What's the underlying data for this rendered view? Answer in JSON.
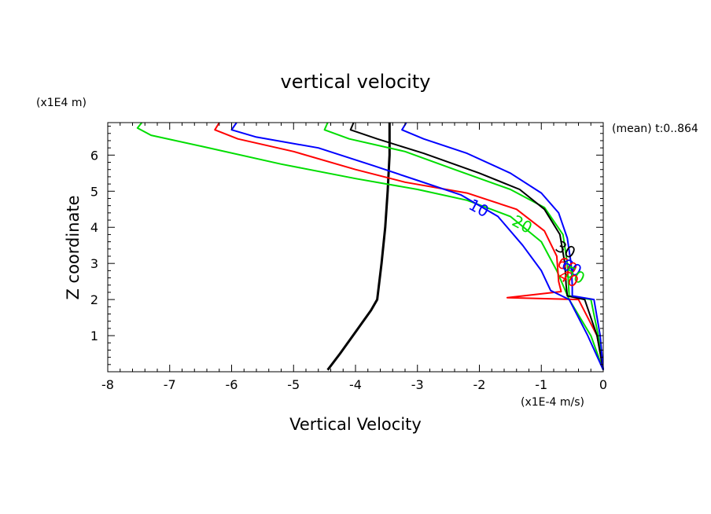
{
  "chart_data": {
    "type": "line",
    "title": "vertical velocity",
    "xlabel": "Vertical Velocity",
    "ylabel": "Z coordinate",
    "x_unit": "(x1E-4 m/s)",
    "y_unit": "(x1E4 m)",
    "annotation": "(mean) t:0..864",
    "xlim": [
      -8,
      0
    ],
    "ylim": [
      0,
      6.9
    ],
    "x_ticks": [
      "-8",
      "-7",
      "-6",
      "-5",
      "-4",
      "-3",
      "-2",
      "-1",
      "0"
    ],
    "y_ticks": [
      "1",
      "2",
      "3",
      "4",
      "5",
      "6"
    ],
    "grid": false,
    "series": [
      {
        "color": "#000000",
        "width": 3,
        "points": [
          [
            -4.45,
            0.05
          ],
          [
            -4.25,
            0.5
          ],
          [
            -4.0,
            1.1
          ],
          [
            -3.75,
            1.7
          ],
          [
            -3.65,
            2.0
          ],
          [
            -3.58,
            3.0
          ],
          [
            -3.52,
            4.0
          ],
          [
            -3.48,
            5.0
          ],
          [
            -3.45,
            6.0
          ],
          [
            -3.45,
            6.9
          ]
        ]
      },
      {
        "color": "#00dd00",
        "width": 2,
        "points": [
          [
            -7.45,
            6.9
          ],
          [
            -7.52,
            6.75
          ],
          [
            -7.3,
            6.55
          ],
          [
            -6.5,
            6.25
          ],
          [
            -5.2,
            5.75
          ],
          [
            -4.0,
            5.35
          ],
          [
            -3.0,
            5.05
          ],
          [
            -2.2,
            4.75
          ],
          [
            -1.5,
            4.3
          ],
          [
            -1.0,
            3.6
          ],
          [
            -0.75,
            2.8
          ],
          [
            -0.55,
            2.0
          ],
          [
            -0.2,
            1.0
          ],
          [
            0,
            0.05
          ]
        ]
      },
      {
        "color": "#ff0000",
        "width": 2,
        "points": [
          [
            -6.2,
            6.9
          ],
          [
            -6.27,
            6.7
          ],
          [
            -5.9,
            6.45
          ],
          [
            -5.0,
            6.1
          ],
          [
            -4.0,
            5.6
          ],
          [
            -3.2,
            5.25
          ],
          [
            -2.2,
            4.95
          ],
          [
            -1.4,
            4.5
          ],
          [
            -0.95,
            3.9
          ],
          [
            -0.75,
            3.2
          ],
          [
            -0.72,
            2.5
          ],
          [
            -0.68,
            2.22
          ],
          [
            -1.55,
            2.05
          ],
          [
            -0.4,
            2.0
          ],
          [
            -0.1,
            1.0
          ],
          [
            0,
            0.05
          ]
        ]
      },
      {
        "color": "#0000ff",
        "width": 2,
        "points": [
          [
            -5.92,
            6.9
          ],
          [
            -6.0,
            6.7
          ],
          [
            -5.6,
            6.5
          ],
          [
            -4.6,
            6.2
          ],
          [
            -3.7,
            5.7
          ],
          [
            -3.0,
            5.3
          ],
          [
            -2.3,
            4.9
          ],
          [
            -1.7,
            4.3
          ],
          [
            -1.3,
            3.5
          ],
          [
            -1.0,
            2.8
          ],
          [
            -0.85,
            2.25
          ],
          [
            -0.55,
            2.0
          ],
          [
            -0.25,
            1.0
          ],
          [
            0,
            0.05
          ]
        ]
      },
      {
        "color": "#00dd00",
        "width": 2,
        "points": [
          [
            -4.45,
            6.9
          ],
          [
            -4.5,
            6.7
          ],
          [
            -4.1,
            6.45
          ],
          [
            -3.2,
            6.1
          ],
          [
            -2.4,
            5.6
          ],
          [
            -1.5,
            5.05
          ],
          [
            -0.95,
            4.55
          ],
          [
            -0.65,
            3.8
          ],
          [
            -0.58,
            3.0
          ],
          [
            -0.56,
            2.4
          ],
          [
            -0.55,
            2.1
          ],
          [
            -0.2,
            2.0
          ],
          [
            -0.08,
            1.0
          ],
          [
            0,
            0.05
          ]
        ]
      },
      {
        "color": "#000000",
        "width": 2,
        "points": [
          [
            -4.03,
            6.9
          ],
          [
            -4.08,
            6.7
          ],
          [
            -3.65,
            6.45
          ],
          [
            -2.9,
            6.05
          ],
          [
            -2.0,
            5.5
          ],
          [
            -1.35,
            5.05
          ],
          [
            -0.95,
            4.5
          ],
          [
            -0.7,
            3.8
          ],
          [
            -0.62,
            3.0
          ],
          [
            -0.6,
            2.4
          ],
          [
            -0.58,
            2.1
          ],
          [
            -0.3,
            2.0
          ],
          [
            -0.1,
            1.0
          ],
          [
            0,
            0.05
          ]
        ]
      },
      {
        "color": "#0000ff",
        "width": 2,
        "points": [
          [
            -3.18,
            6.9
          ],
          [
            -3.25,
            6.7
          ],
          [
            -2.9,
            6.45
          ],
          [
            -2.2,
            6.05
          ],
          [
            -1.5,
            5.5
          ],
          [
            -1.0,
            4.95
          ],
          [
            -0.72,
            4.4
          ],
          [
            -0.58,
            3.7
          ],
          [
            -0.52,
            3.0
          ],
          [
            -0.5,
            2.4
          ],
          [
            -0.5,
            2.1
          ],
          [
            -0.15,
            2.0
          ],
          [
            -0.05,
            1.0
          ],
          [
            0,
            0.05
          ]
        ]
      }
    ],
    "contour_labels": [
      {
        "text": "10",
        "color": "#0000ff",
        "x": -2.05,
        "y": 4.4
      },
      {
        "text": "20",
        "color": "#00dd00",
        "x": -1.35,
        "y": 3.95
      },
      {
        "text": "30",
        "color": "#000000",
        "x": -0.65,
        "y": 3.25
      },
      {
        "text": "60",
        "color": "#ff0000",
        "x": -0.62,
        "y": 2.8
      },
      {
        "text": "60",
        "color": "#0000ff",
        "x": -0.55,
        "y": 2.75
      },
      {
        "text": "50",
        "color": "#00dd00",
        "x": -0.5,
        "y": 2.55
      },
      {
        "text": "40",
        "color": "#ff0000",
        "x": -0.6,
        "y": 2.45
      }
    ]
  }
}
